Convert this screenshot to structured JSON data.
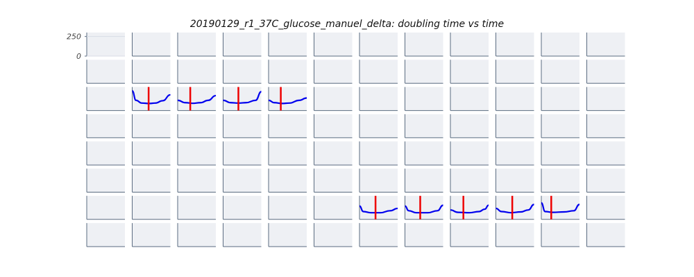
{
  "chart_data": {
    "type": "line",
    "title": "20190129_r1_37C_glucose_manuel_delta: doubling time vs time",
    "layout": {
      "rows": 8,
      "cols": 12
    },
    "ylim": [
      0,
      300
    ],
    "yticks": [
      "250",
      "0"
    ],
    "grid": false,
    "colors": {
      "curve": "#0000ee",
      "marker": "#ee0000",
      "panel_bg": "#eef0f4",
      "axis": "#5a6b80"
    },
    "panels": [
      {
        "row": 2,
        "col": 1,
        "curve": [
          [
            0,
            250
          ],
          [
            0.1,
            130
          ],
          [
            0.25,
            95
          ],
          [
            0.45,
            90
          ],
          [
            0.6,
            95
          ],
          [
            0.8,
            125
          ],
          [
            1,
            200
          ]
        ],
        "marker_x": 0.43
      },
      {
        "row": 2,
        "col": 2,
        "curve": [
          [
            0,
            130
          ],
          [
            0.2,
            100
          ],
          [
            0.4,
            92
          ],
          [
            0.6,
            100
          ],
          [
            0.8,
            130
          ],
          [
            1,
            190
          ]
        ],
        "marker_x": 0.33
      },
      {
        "row": 2,
        "col": 3,
        "curve": [
          [
            0,
            130
          ],
          [
            0.2,
            100
          ],
          [
            0.4,
            95
          ],
          [
            0.6,
            100
          ],
          [
            0.85,
            130
          ],
          [
            1,
            240
          ]
        ],
        "marker_x": 0.4
      },
      {
        "row": 2,
        "col": 4,
        "curve": [
          [
            0,
            130
          ],
          [
            0.15,
            100
          ],
          [
            0.35,
            90
          ],
          [
            0.55,
            95
          ],
          [
            0.8,
            130
          ],
          [
            1,
            160
          ]
        ],
        "marker_x": 0.32
      },
      {
        "row": 6,
        "col": 6,
        "curve": [
          [
            0,
            170
          ],
          [
            0.1,
            100
          ],
          [
            0.3,
            85
          ],
          [
            0.55,
            85
          ],
          [
            0.8,
            110
          ],
          [
            1,
            140
          ]
        ],
        "marker_x": 0.42
      },
      {
        "row": 6,
        "col": 7,
        "curve": [
          [
            0,
            170
          ],
          [
            0.1,
            110
          ],
          [
            0.3,
            85
          ],
          [
            0.6,
            85
          ],
          [
            0.85,
            110
          ],
          [
            1,
            180
          ]
        ],
        "marker_x": 0.4
      },
      {
        "row": 6,
        "col": 8,
        "curve": [
          [
            0,
            120
          ],
          [
            0.2,
            90
          ],
          [
            0.5,
            85
          ],
          [
            0.75,
            100
          ],
          [
            0.9,
            130
          ],
          [
            1,
            180
          ]
        ],
        "marker_x": 0.34
      },
      {
        "row": 6,
        "col": 9,
        "curve": [
          [
            0,
            140
          ],
          [
            0.15,
            100
          ],
          [
            0.4,
            85
          ],
          [
            0.65,
            95
          ],
          [
            0.85,
            120
          ],
          [
            1,
            190
          ]
        ],
        "marker_x": 0.43
      },
      {
        "row": 6,
        "col": 10,
        "curve": [
          [
            0,
            210
          ],
          [
            0.1,
            100
          ],
          [
            0.3,
            90
          ],
          [
            0.6,
            95
          ],
          [
            0.85,
            110
          ],
          [
            1,
            190
          ]
        ],
        "marker_x": 0.26
      }
    ]
  }
}
